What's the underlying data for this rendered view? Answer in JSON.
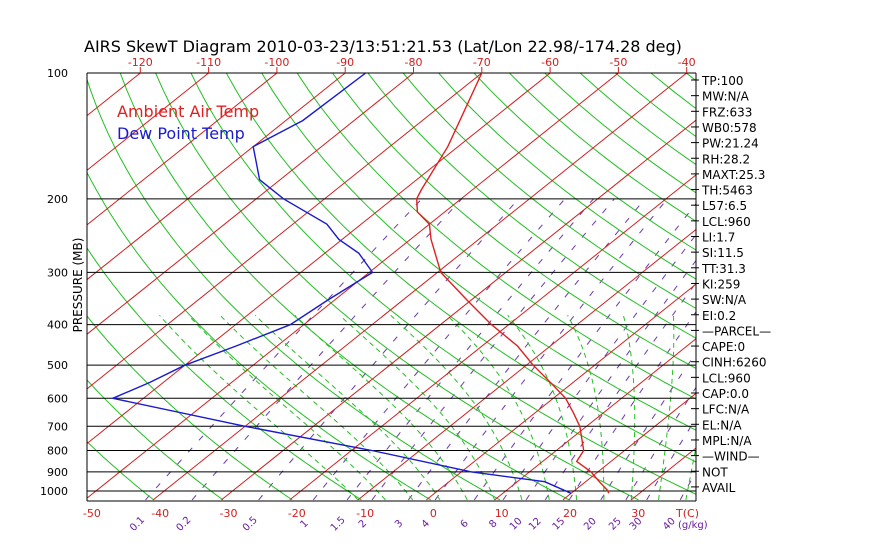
{
  "chart_data": {
    "type": "skewt",
    "title": "AIRS SkewT Diagram 2010-03-23/13:51:21.53 (Lat/Lon 22.98/-174.28 deg)",
    "ylabel": "PRESSURE (MB)",
    "top_temp_ticks": [
      "-120",
      "-110",
      "-100",
      "-90",
      "-80",
      "-70",
      "-60",
      "-50",
      "-40"
    ],
    "bottom_temp_ticks": [
      "-50",
      "-40",
      "-30",
      "-20",
      "-10",
      "0",
      "10",
      "20",
      "30"
    ],
    "bottom_temp_unit_label": "T(C)",
    "mixing_ratio_labels": [
      "0.1",
      "0.2",
      "0.5",
      "1",
      "1.5",
      "2",
      "3",
      "4",
      "6",
      "8",
      "10",
      "12",
      "15",
      "20",
      "25",
      "30",
      "40"
    ],
    "mixing_ratio_unit_label": "(g/kg)",
    "pressure_ticks": [
      100,
      200,
      300,
      400,
      500,
      600,
      700,
      800,
      900,
      1000
    ],
    "legend": [
      {
        "label": "Ambient Air Temp",
        "color": "#e02020"
      },
      {
        "label": "Dew Point Temp",
        "color": "#1a1ad0"
      }
    ],
    "series": [
      {
        "name": "Ambient Air Temp",
        "color": "#e02020",
        "points": [
          {
            "p": 100,
            "t": -70.0
          },
          {
            "p": 150,
            "t": -61.5
          },
          {
            "p": 190,
            "t": -57.5
          },
          {
            "p": 200,
            "t": -56.5
          },
          {
            "p": 215,
            "t": -54.0
          },
          {
            "p": 230,
            "t": -50.0
          },
          {
            "p": 250,
            "t": -47.0
          },
          {
            "p": 300,
            "t": -39.5
          },
          {
            "p": 350,
            "t": -30.5
          },
          {
            "p": 400,
            "t": -22.5
          },
          {
            "p": 450,
            "t": -14.8
          },
          {
            "p": 500,
            "t": -9.0
          },
          {
            "p": 550,
            "t": -3.3
          },
          {
            "p": 600,
            "t": 1.8
          },
          {
            "p": 650,
            "t": 5.6
          },
          {
            "p": 700,
            "t": 9.0
          },
          {
            "p": 800,
            "t": 14.0
          },
          {
            "p": 850,
            "t": 15.0
          },
          {
            "p": 900,
            "t": 19.0
          },
          {
            "p": 950,
            "t": 22.0
          },
          {
            "p": 1000,
            "t": 25.0
          },
          {
            "p": 1013,
            "t": 25.5
          }
        ]
      },
      {
        "name": "Dew Point Temp",
        "color": "#1a1ad0",
        "points": [
          {
            "p": 100,
            "t": -87.0
          },
          {
            "p": 130,
            "t": -87.5
          },
          {
            "p": 150,
            "t": -90.0
          },
          {
            "p": 180,
            "t": -83.0
          },
          {
            "p": 200,
            "t": -76.0
          },
          {
            "p": 230,
            "t": -65.0
          },
          {
            "p": 250,
            "t": -60.5
          },
          {
            "p": 270,
            "t": -55.0
          },
          {
            "p": 300,
            "t": -49.5
          },
          {
            "p": 350,
            "t": -51.0
          },
          {
            "p": 400,
            "t": -52.0
          },
          {
            "p": 450,
            "t": -56.0
          },
          {
            "p": 500,
            "t": -60.0
          },
          {
            "p": 550,
            "t": -62.0
          },
          {
            "p": 600,
            "t": -64.5
          },
          {
            "p": 700,
            "t": -40.0
          },
          {
            "p": 800,
            "t": -17.0
          },
          {
            "p": 900,
            "t": 1.5
          },
          {
            "p": 950,
            "t": 14.0
          },
          {
            "p": 1013,
            "t": 20.0
          }
        ]
      }
    ]
  },
  "stats": [
    "TP:100",
    "MW:N/A",
    "FRZ:633",
    "WB0:578",
    "PW:21.24",
    "RH:28.2",
    "MAXT:25.3",
    "TH:5463",
    "L57:6.5",
    "LCL:960",
    "LI:1.7",
    "SI:11.5",
    "TT:31.3",
    "KI:259",
    "SW:N/A",
    "EI:0.2",
    "—PARCEL—",
    "CAPE:0",
    "CINH:6260",
    "LCL:960",
    "CAP:0.0",
    "LFC:N/A",
    "EL:N/A",
    "MPL:N/A",
    "—WIND—",
    "NOT",
    "AVAIL"
  ]
}
